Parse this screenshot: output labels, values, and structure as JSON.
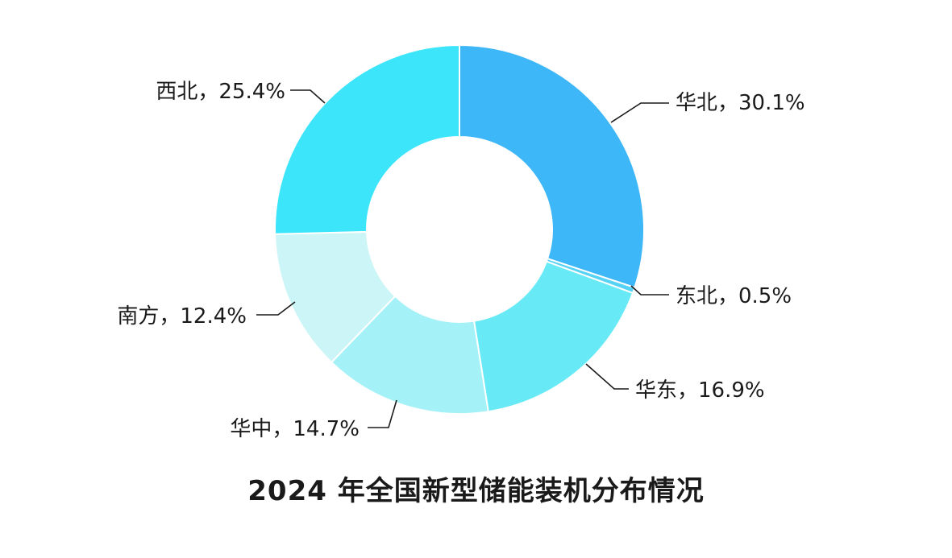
{
  "chart_data": {
    "type": "pie",
    "variant": "donut",
    "title": "2024 年全国新型储能装机分布情况",
    "unit": "%",
    "slices": [
      {
        "label": "华北",
        "value": 30.1,
        "color": "#3db7f7",
        "display": "华北，30.1%"
      },
      {
        "label": "东北",
        "value": 0.5,
        "color": "#56d3f4",
        "display": "东北，0.5%"
      },
      {
        "label": "华东",
        "value": 16.9,
        "color": "#68eaf6",
        "display": "华东，16.9%"
      },
      {
        "label": "华中",
        "value": 14.7,
        "color": "#a4f2f7",
        "display": "华中，14.7%"
      },
      {
        "label": "南方",
        "value": 12.4,
        "color": "#cbf5f6",
        "display": "南方，12.4%"
      },
      {
        "label": "西北",
        "value": 25.4,
        "color": "#3de5fb",
        "display": "西北，25.4%"
      }
    ],
    "legend": "none",
    "labels_position": "outside-with-leader-lines"
  }
}
